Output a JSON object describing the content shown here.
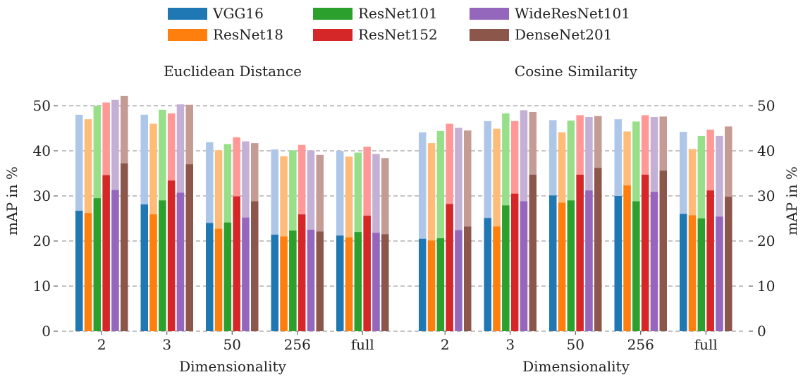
{
  "legend": {
    "items": [
      {
        "label": "VGG16",
        "color": "#1f77b4"
      },
      {
        "label": "ResNet18",
        "color": "#ff7f0e"
      },
      {
        "label": "ResNet101",
        "color": "#2ca02c"
      },
      {
        "label": "ResNet152",
        "color": "#d62728"
      },
      {
        "label": "WideResNet101",
        "color": "#9467bd"
      },
      {
        "label": "DenseNet201",
        "color": "#8c564b"
      }
    ]
  },
  "chart_data": [
    {
      "type": "bar",
      "title": "Euclidean Distance",
      "xlabel": "Dimensionality",
      "ylabel": "mAP in %",
      "ylim": [
        0,
        53
      ],
      "yticks": [
        0,
        10,
        20,
        30,
        40,
        50
      ],
      "grid": "horizontal dashed",
      "categories": [
        "2",
        "3",
        "50",
        "256",
        "full"
      ],
      "series": [
        {
          "name": "VGG16",
          "color": "#1f77b4",
          "light_color": "#aec7e8",
          "values": [
            26.7,
            28.1,
            24.0,
            21.4,
            21.2
          ],
          "upper_values": [
            48.0,
            48.0,
            41.9,
            40.3,
            40.0
          ]
        },
        {
          "name": "ResNet18",
          "color": "#ff7f0e",
          "light_color": "#ffbb78",
          "values": [
            26.2,
            25.9,
            22.7,
            21.0,
            20.8
          ],
          "upper_values": [
            47.0,
            46.0,
            40.1,
            38.8,
            38.7
          ]
        },
        {
          "name": "ResNet101",
          "color": "#2ca02c",
          "light_color": "#98df8a",
          "values": [
            29.5,
            29.0,
            24.1,
            22.3,
            22.0
          ],
          "upper_values": [
            50.0,
            49.1,
            41.5,
            40.1,
            39.6
          ]
        },
        {
          "name": "ResNet152",
          "color": "#d62728",
          "light_color": "#ff9896",
          "values": [
            34.6,
            33.4,
            29.9,
            25.9,
            25.6
          ],
          "upper_values": [
            50.7,
            48.3,
            43.0,
            41.3,
            40.9
          ]
        },
        {
          "name": "WideResNet101",
          "color": "#9467bd",
          "light_color": "#c5b0d5",
          "values": [
            31.3,
            30.7,
            25.2,
            22.5,
            21.8
          ],
          "upper_values": [
            51.3,
            50.3,
            42.1,
            40.1,
            39.3
          ]
        },
        {
          "name": "DenseNet201",
          "color": "#8c564b",
          "light_color": "#c49c94",
          "values": [
            37.2,
            37.0,
            28.8,
            22.1,
            21.5
          ],
          "upper_values": [
            52.2,
            50.2,
            41.7,
            39.1,
            38.4
          ]
        }
      ]
    },
    {
      "type": "bar",
      "title": "Cosine Similarity",
      "xlabel": "Dimensionality",
      "ylabel": "mAP in %",
      "ylim": [
        0,
        53
      ],
      "yticks": [
        0,
        10,
        20,
        30,
        40,
        50
      ],
      "grid": "horizontal dashed",
      "categories": [
        "2",
        "3",
        "50",
        "256",
        "full"
      ],
      "series": [
        {
          "name": "VGG16",
          "color": "#1f77b4",
          "light_color": "#aec7e8",
          "values": [
            20.5,
            25.1,
            30.1,
            30.0,
            26.0
          ],
          "upper_values": [
            44.1,
            46.6,
            46.8,
            47.0,
            44.2
          ]
        },
        {
          "name": "ResNet18",
          "color": "#ff7f0e",
          "light_color": "#ffbb78",
          "values": [
            20.1,
            23.2,
            28.5,
            32.3,
            25.7
          ],
          "upper_values": [
            41.7,
            44.9,
            44.1,
            44.3,
            40.4
          ]
        },
        {
          "name": "ResNet101",
          "color": "#2ca02c",
          "light_color": "#98df8a",
          "values": [
            20.6,
            27.9,
            29.0,
            28.8,
            25.0
          ],
          "upper_values": [
            44.4,
            48.3,
            46.7,
            46.5,
            43.3
          ]
        },
        {
          "name": "ResNet152",
          "color": "#d62728",
          "light_color": "#ff9896",
          "values": [
            28.2,
            30.5,
            34.7,
            34.7,
            31.2
          ],
          "upper_values": [
            46.0,
            46.6,
            47.9,
            47.9,
            44.7
          ]
        },
        {
          "name": "WideResNet101",
          "color": "#9467bd",
          "light_color": "#c5b0d5",
          "values": [
            22.4,
            28.8,
            31.2,
            30.9,
            25.4
          ],
          "upper_values": [
            45.1,
            49.0,
            47.5,
            47.5,
            43.3
          ]
        },
        {
          "name": "DenseNet201",
          "color": "#8c564b",
          "light_color": "#c49c94",
          "values": [
            23.2,
            34.7,
            36.2,
            35.6,
            29.8
          ],
          "upper_values": [
            44.5,
            48.6,
            47.7,
            47.6,
            45.4
          ]
        }
      ]
    }
  ]
}
